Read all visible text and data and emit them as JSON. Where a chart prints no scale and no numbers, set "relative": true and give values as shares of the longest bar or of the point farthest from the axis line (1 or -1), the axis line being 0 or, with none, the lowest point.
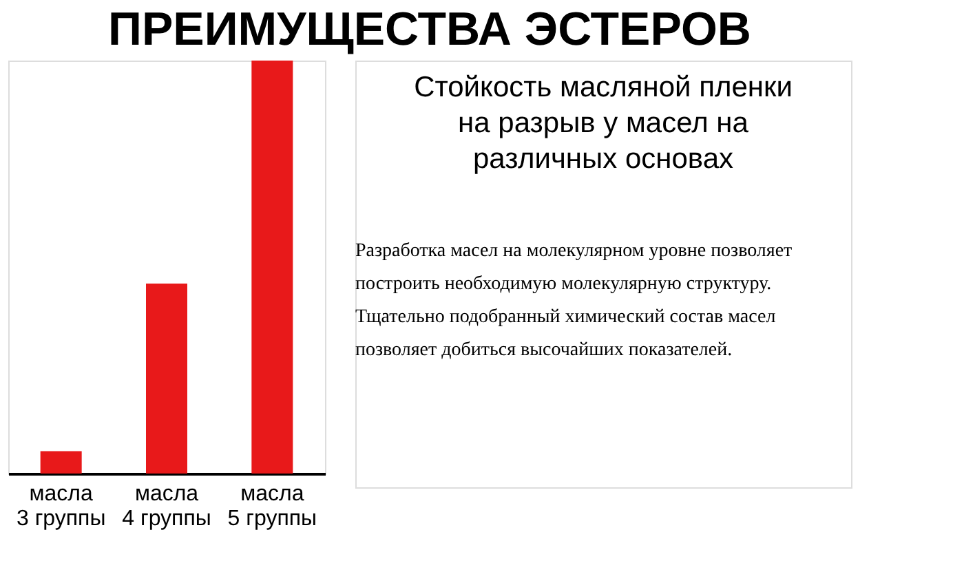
{
  "chart_data": {
    "type": "bar",
    "title": "ПРЕИМУЩЕСТВА ЭСТЕРОВ",
    "subtitle": "Стойкость масляной пленки на разрыв у масел на различных основах",
    "categories": [
      "масла 3 группы",
      "масла 4 группы",
      "масла 5 группы"
    ],
    "values": [
      0.054,
      0.46,
      1
    ],
    "color": "#e8191a",
    "relative": true,
    "grid": false,
    "annotations": [
      "Разработка масел на молекулярном уровне позволяет построить необходимую молекулярную структуру.",
      "Тщательно подобранный химический состав масел позволяет добиться высочайших показателей."
    ]
  }
}
